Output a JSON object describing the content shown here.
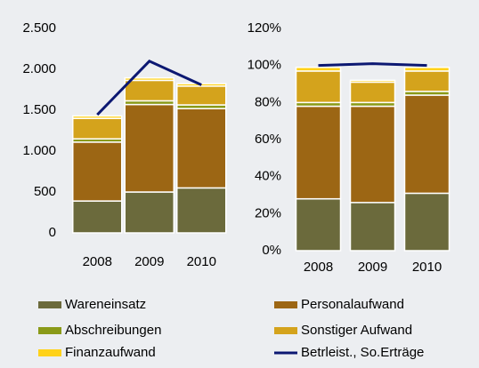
{
  "chart_data": [
    {
      "type": "bar",
      "stacked": true,
      "categories": [
        "2008",
        "2009",
        "2010"
      ],
      "ylim": [
        0,
        2500
      ],
      "yticks": [
        0,
        500,
        {
          "value": 1000,
          "label": "1.000"
        },
        {
          "value": 1500,
          "label": "1.500"
        },
        {
          "value": 2000,
          "label": "2.000"
        },
        {
          "value": 2500,
          "label": "2.500"
        }
      ],
      "series": [
        {
          "name": "Wareneinsatz",
          "color": "#6b6a3c",
          "values": [
            390,
            500,
            550
          ]
        },
        {
          "name": "Personalaufwand",
          "color": "#9c6614",
          "values": [
            720,
            1070,
            970
          ]
        },
        {
          "name": "Abschreibungen",
          "color": "#8a9a18",
          "values": [
            40,
            45,
            45
          ]
        },
        {
          "name": "Sonstiger Aufwand",
          "color": "#d4a31c",
          "values": [
            250,
            250,
            230
          ]
        },
        {
          "name": "Finanzaufwand",
          "color": "#ffd21a",
          "values": [
            30,
            30,
            30
          ]
        },
        {
          "name": "Betrleist., So.Erträge",
          "color": "#0c1872",
          "type": "line",
          "values": [
            1445,
            2100,
            1810
          ]
        }
      ]
    },
    {
      "type": "bar",
      "stacked": true,
      "categories": [
        "2008",
        "2009",
        "2010"
      ],
      "ylim": [
        0,
        120
      ],
      "yticks": [
        {
          "value": 0,
          "label": "0%"
        },
        {
          "value": 20,
          "label": "20%"
        },
        {
          "value": 40,
          "label": "40%"
        },
        {
          "value": 60,
          "label": "60%"
        },
        {
          "value": 80,
          "label": "80%"
        },
        {
          "value": 100,
          "label": "100%"
        },
        {
          "value": 120,
          "label": "120%"
        }
      ],
      "series": [
        {
          "name": "Wareneinsatz",
          "color": "#6b6a3c",
          "values": [
            28,
            26,
            31
          ]
        },
        {
          "name": "Personalaufwand",
          "color": "#9c6614",
          "values": [
            50,
            52,
            53
          ]
        },
        {
          "name": "Abschreibungen",
          "color": "#8a9a18",
          "values": [
            2,
            2,
            2
          ]
        },
        {
          "name": "Sonstiger Aufwand",
          "color": "#d4a31c",
          "values": [
            17,
            11,
            11
          ]
        },
        {
          "name": "Finanzaufwand",
          "color": "#ffd21a",
          "values": [
            2,
            1,
            2
          ]
        },
        {
          "name": "Betrleist., So.Erträge",
          "color": "#0c1872",
          "type": "line",
          "values": [
            100,
            101,
            100
          ]
        }
      ]
    }
  ]
}
